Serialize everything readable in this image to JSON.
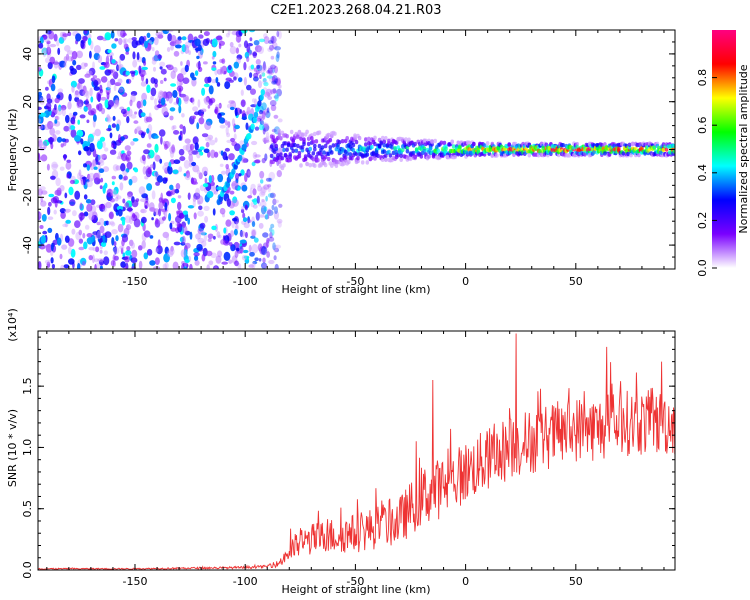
{
  "figure": {
    "title": "C2E1.2023.268.04.21.R03"
  },
  "chart_data": [
    {
      "type": "heatmap",
      "panel": "spectrogram",
      "xlabel": "Height of straight line (km)",
      "ylabel": "Frequency (Hz)",
      "xlim": [
        -194,
        95
      ],
      "ylim": [
        -50,
        50
      ],
      "xticks": [
        -150,
        -100,
        -50,
        0,
        50
      ],
      "yticks": [
        -40,
        -20,
        0,
        20,
        40
      ],
      "colorbar": {
        "label": "Normalized spectral amplitude",
        "range": [
          0,
          1
        ],
        "ticks": [
          0.0,
          0.2,
          0.4,
          0.6,
          0.8
        ],
        "tick_labels": [
          "0.0",
          "0.2",
          "0.4",
          "0.6",
          "0.8"
        ],
        "colormap": [
          "#ffffff",
          "#7a00ff",
          "#0000ff",
          "#00ffff",
          "#00ff00",
          "#ffff00",
          "#ff0000",
          "#ff0080"
        ]
      },
      "features": [
        {
          "name": "noise_region",
          "x_range": [
            -194,
            -88
          ],
          "y_range": [
            -50,
            50
          ],
          "amplitude": 0.25
        },
        {
          "name": "streak",
          "x": [
            -112,
            -105,
            -100,
            -96,
            -92
          ],
          "y": [
            -22,
            -8,
            2,
            12,
            24
          ],
          "amplitude": 0.3
        },
        {
          "name": "signal_band",
          "x": [
            -88,
            -60,
            -40,
            -20,
            0,
            20,
            40,
            60,
            95
          ],
          "y": [
            0,
            0,
            0,
            0,
            0,
            0,
            0,
            0,
            0
          ],
          "half_width_hz": [
            8,
            7,
            5,
            4,
            3,
            2.5,
            2.5,
            2.5,
            2.5
          ],
          "amplitude": [
            0.3,
            0.35,
            0.45,
            0.55,
            0.75,
            0.85,
            0.9,
            0.9,
            0.9
          ]
        }
      ]
    },
    {
      "type": "line",
      "panel": "snr",
      "xlabel": "Height of straight line (km)",
      "ylabel": "SNR (10 * v/v)",
      "y_multiplier": "(x10⁴)",
      "xlim": [
        -194,
        95
      ],
      "ylim": [
        0,
        1.95
      ],
      "xticks": [
        -150,
        -100,
        -50,
        0,
        50
      ],
      "yticks": [
        0.0,
        0.5,
        1.0,
        1.5
      ],
      "ytick_labels": [
        "0.0",
        "0.5",
        "1.0",
        "1.5"
      ],
      "series_color": "#ee3333",
      "x": [
        -194,
        -150,
        -100,
        -90,
        -85,
        -80,
        -75,
        -70,
        -60,
        -50,
        -40,
        -30,
        -25,
        -20,
        -10,
        0,
        10,
        20,
        30,
        40,
        50,
        60,
        70,
        80,
        95
      ],
      "mean": [
        0.01,
        0.01,
        0.02,
        0.03,
        0.05,
        0.15,
        0.22,
        0.25,
        0.28,
        0.3,
        0.35,
        0.4,
        0.5,
        0.6,
        0.68,
        0.8,
        0.9,
        1.0,
        1.05,
        1.1,
        1.15,
        1.15,
        1.2,
        1.2,
        1.2
      ],
      "spread": [
        0.005,
        0.005,
        0.01,
        0.01,
        0.03,
        0.1,
        0.12,
        0.13,
        0.15,
        0.16,
        0.18,
        0.2,
        0.22,
        0.25,
        0.25,
        0.25,
        0.26,
        0.27,
        0.27,
        0.27,
        0.27,
        0.27,
        0.27,
        0.27,
        0.27
      ],
      "peaks": [
        {
          "x": -15,
          "y": 1.55
        },
        {
          "x": 23,
          "y": 1.93
        },
        {
          "x": 64,
          "y": 1.82
        },
        {
          "x": 89,
          "y": 1.7
        }
      ]
    }
  ]
}
